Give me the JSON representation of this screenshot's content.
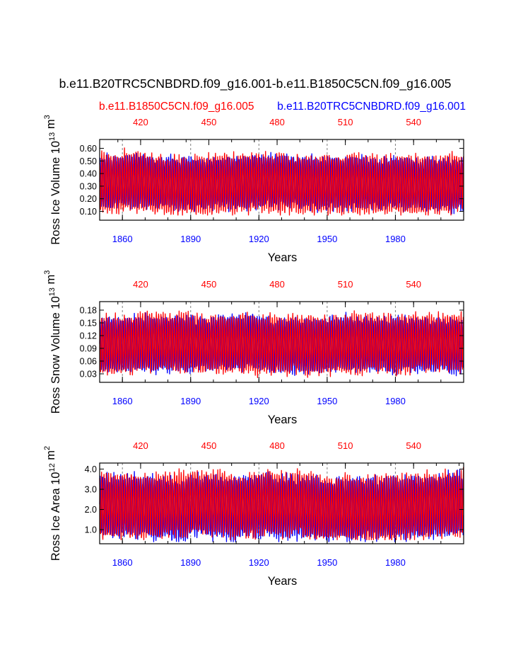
{
  "title": "b.e11.B20TRC5CNBDRD.f09_g16.001-b.e11.B1850C5CN.f09_g16.005",
  "legend": {
    "red_label": "b.e11.B1850C5CN.f09_g16.005",
    "blue_label": "b.e11.B20TRC5CNBDRD.f09_g16.001"
  },
  "colors": {
    "red_series": "#ff0000",
    "blue_series": "#0000ff",
    "top_ticks": "#ff0000",
    "bottom_ticks": "#0000ff",
    "ref_lines": "#808080"
  },
  "chart_data": [
    {
      "type": "line",
      "ylabel": "Ross Ice Volume",
      "yunit": "10^13 m^3",
      "xlabel": "Years",
      "ylim": [
        0.03,
        0.67
      ],
      "yticks": [
        "0.10",
        "0.20",
        "0.30",
        "0.40",
        "0.50",
        "0.60"
      ],
      "ytick_values": [
        0.1,
        0.2,
        0.3,
        0.4,
        0.5,
        0.6
      ],
      "x_bottom": {
        "range": [
          1850,
          2010
        ],
        "ticks": [
          "1860",
          "1890",
          "1920",
          "1950",
          "1980"
        ],
        "tick_values": [
          1860,
          1890,
          1920,
          1950,
          1980
        ]
      },
      "x_top": {
        "range": [
          402,
          562
        ],
        "ticks": [
          "420",
          "450",
          "480",
          "510",
          "540"
        ],
        "tick_values": [
          420,
          450,
          480,
          510,
          540
        ]
      },
      "series": [
        {
          "name": "b.e11.B20TRC5CNBDRD.f09_g16.001",
          "color": "blue",
          "min": 0.06,
          "max": 0.59,
          "mean_min": 0.13,
          "mean_max": 0.52
        },
        {
          "name": "b.e11.B1850C5CN.f09_g16.005",
          "color": "red",
          "min": 0.07,
          "max": 0.65,
          "mean_min": 0.11,
          "mean_max": 0.55
        }
      ]
    },
    {
      "type": "line",
      "ylabel": "Ross Snow Volume",
      "yunit": "10^13 m^3",
      "xlabel": "Years",
      "ylim": [
        0.01,
        0.2
      ],
      "yticks": [
        "0.03",
        "0.06",
        "0.09",
        "0.12",
        "0.15",
        "0.18"
      ],
      "ytick_values": [
        0.03,
        0.06,
        0.09,
        0.12,
        0.15,
        0.18
      ],
      "x_bottom": {
        "range": [
          1850,
          2010
        ],
        "ticks": [
          "1860",
          "1890",
          "1920",
          "1950",
          "1980"
        ],
        "tick_values": [
          1860,
          1890,
          1920,
          1950,
          1980
        ]
      },
      "x_top": {
        "range": [
          402,
          562
        ],
        "ticks": [
          "420",
          "450",
          "480",
          "510",
          "540"
        ],
        "tick_values": [
          420,
          450,
          480,
          510,
          540
        ]
      },
      "series": [
        {
          "name": "b.e11.B20TRC5CNBDRD.f09_g16.001",
          "color": "blue",
          "min": 0.015,
          "max": 0.185,
          "mean_min": 0.04,
          "mean_max": 0.16
        },
        {
          "name": "b.e11.B1850C5CN.f09_g16.005",
          "color": "red",
          "min": 0.02,
          "max": 0.195,
          "mean_min": 0.035,
          "mean_max": 0.165
        }
      ]
    },
    {
      "type": "line",
      "ylabel": "Ross Ice Area",
      "yunit": "10^12 m^2",
      "xlabel": "Years",
      "ylim": [
        0.3,
        4.3
      ],
      "yticks": [
        "1.0",
        "2.0",
        "3.0",
        "4.0"
      ],
      "ytick_values": [
        1.0,
        2.0,
        3.0,
        4.0
      ],
      "x_bottom": {
        "range": [
          1850,
          2010
        ],
        "ticks": [
          "1860",
          "1890",
          "1920",
          "1950",
          "1980"
        ],
        "tick_values": [
          1860,
          1890,
          1920,
          1950,
          1980
        ]
      },
      "x_top": {
        "range": [
          402,
          562
        ],
        "ticks": [
          "420",
          "450",
          "480",
          "510",
          "540"
        ],
        "tick_values": [
          420,
          450,
          480,
          510,
          540
        ]
      },
      "series": [
        {
          "name": "b.e11.B20TRC5CNBDRD.f09_g16.001",
          "color": "blue",
          "min": 0.4,
          "max": 4.0,
          "mean_min": 0.7,
          "mean_max": 3.6
        },
        {
          "name": "b.e11.B1850C5CN.f09_g16.005",
          "color": "red",
          "min": 0.5,
          "max": 4.2,
          "mean_min": 0.7,
          "mean_max": 3.7
        }
      ]
    }
  ]
}
